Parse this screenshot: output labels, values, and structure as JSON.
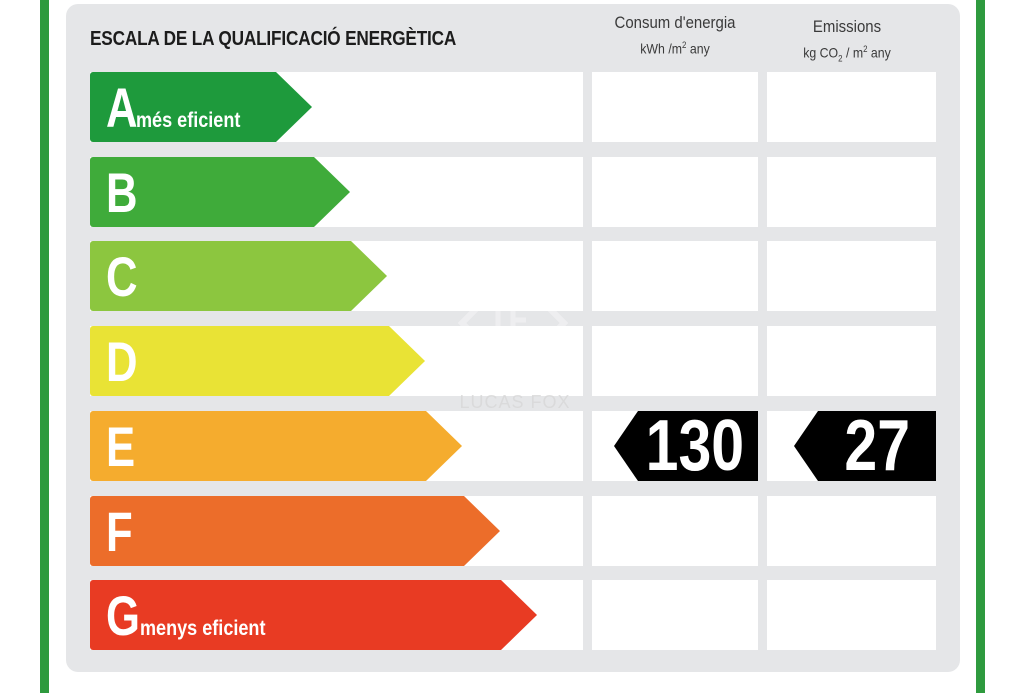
{
  "title": "ESCALA DE LA QUALIFICACIÓ ENERGÈTICA",
  "columns": {
    "consum": {
      "label": "Consum d'energia",
      "unit_pre": "kWh /m",
      "unit_sup": "2",
      "unit_post": " any"
    },
    "emissions": {
      "label": "Emissions",
      "unit_pre": "kg CO",
      "unit_sub": "2",
      "unit_mid": " / m",
      "unit_sup": "2",
      "unit_post": " any"
    }
  },
  "ratings": [
    {
      "letter": "A",
      "desc": "més eficient",
      "color": "#1e9a3c"
    },
    {
      "letter": "B",
      "desc": "",
      "color": "#3fab3a"
    },
    {
      "letter": "C",
      "desc": "",
      "color": "#8cc63f"
    },
    {
      "letter": "D",
      "desc": "",
      "color": "#e9e335"
    },
    {
      "letter": "E",
      "desc": "",
      "color": "#f5ac2e"
    },
    {
      "letter": "F",
      "desc": "",
      "color": "#ec6d2a"
    },
    {
      "letter": "G",
      "desc": "menys eficient",
      "color": "#e83b23"
    }
  ],
  "current": {
    "rating": "E",
    "consum_value": "130",
    "emissions_value": "27"
  },
  "watermark": {
    "text": "LUCAS FOX",
    "icon": "lucas-fox-logo-icon"
  },
  "colors": {
    "frame": "#2e9a3e",
    "panel": "#e5e6e8",
    "indicator": "#000000"
  }
}
